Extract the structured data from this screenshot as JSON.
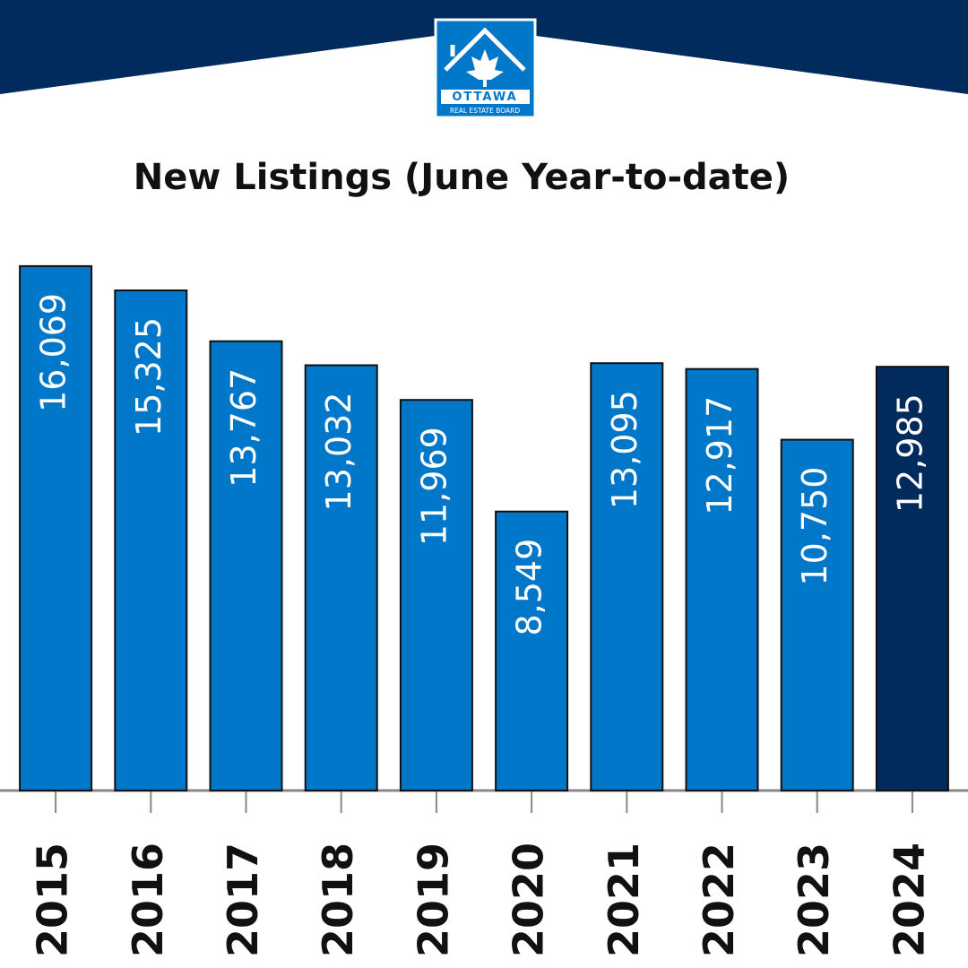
{
  "logo": {
    "name": "OTTAWA",
    "subtitle": "REAL ESTATE BOARD"
  },
  "chart_data": {
    "type": "bar",
    "title": "New Listings (June Year-to-date)",
    "categories": [
      "2015",
      "2016",
      "2017",
      "2018",
      "2019",
      "2020",
      "2021",
      "2022",
      "2023",
      "2024"
    ],
    "values": [
      16069,
      15325,
      13767,
      13032,
      11969,
      8549,
      13095,
      12917,
      10750,
      12985
    ],
    "value_labels": [
      "16,069",
      "15,325",
      "13,767",
      "13,032",
      "11,969",
      "8,549",
      "13,095",
      "12,917",
      "10,750",
      "12,985"
    ],
    "colors": [
      "#0077c8",
      "#0077c8",
      "#0077c8",
      "#0077c8",
      "#0077c8",
      "#0077c8",
      "#0077c8",
      "#0077c8",
      "#0077c8",
      "#002b5c"
    ],
    "ylim": [
      0,
      17000
    ]
  }
}
